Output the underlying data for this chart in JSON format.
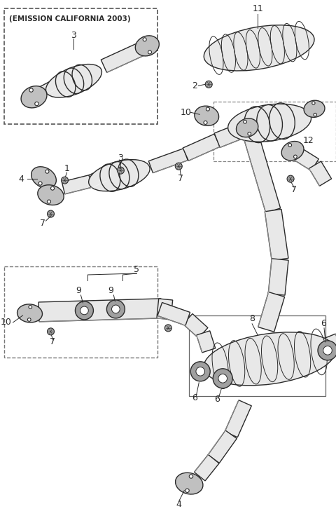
{
  "bg_color": "#ffffff",
  "line_color": "#2a2a2a",
  "fig_width": 4.8,
  "fig_height": 7.46,
  "dpi": 100,
  "emission_text": "(EMISSION CALIFORNIA 2003)",
  "part_color": "#e8e8e8",
  "dark_part": "#c0c0c0",
  "shadow": "#a0a0a0"
}
